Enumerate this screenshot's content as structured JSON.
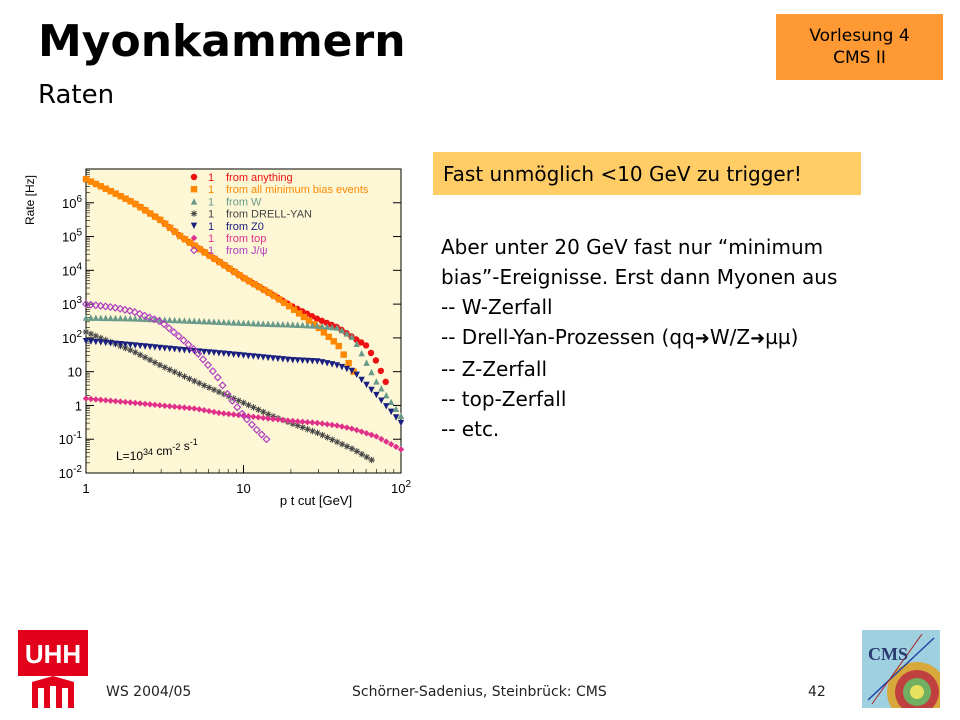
{
  "header": {
    "title": "Myonkammern",
    "subtitle": "Raten",
    "badge_line1": "Vorlesung 4",
    "badge_line2": "CMS II"
  },
  "highlight": "Fast unmöglich <10 GeV zu trigger!",
  "body": {
    "line1": "Aber unter 20 GeV fast nur “minimum",
    "line2": "bias”-Ereignisse. Erst dann Myonen aus",
    "line3": "-- W-Zerfall",
    "line4_a": "-- Drell-Yan-Prozessen (qq",
    "line4_b": "W/Z",
    "line4_c": "µµ)",
    "line5": "-- Z-Zerfall",
    "line6": "-- top-Zerfall",
    "line7": "-- etc."
  },
  "footer": {
    "left": "WS 2004/05",
    "center": "Schörner-Sadenius, Steinbrück: CMS",
    "page": "42"
  },
  "logos": {
    "uhh_text": "UHH",
    "cms_text": "CMS"
  },
  "chart_data": {
    "type": "scatter",
    "title": "",
    "xlabel": "p t cut [GeV]",
    "ylabel": "Rate [Hz]",
    "x_scale": "log",
    "y_scale": "log",
    "xlim": [
      1,
      100
    ],
    "ylim": [
      0.01,
      10000000
    ],
    "x_tick_labels": [
      "1",
      "10",
      "10^2"
    ],
    "y_tick_labels": [
      "10^6",
      "10^5",
      "10^4",
      "10^3",
      "10^2",
      "10",
      "1",
      "10^-1",
      "10^-2"
    ],
    "annotation": "L=10^34 cm^-2 s^-1",
    "legend_position": "top-right",
    "series": [
      {
        "name": "from anything",
        "legend_prefix": "1",
        "color": "#ee1111",
        "marker": "circle",
        "x": [
          1,
          1.5,
          2,
          3,
          4,
          5,
          7,
          10,
          15,
          20,
          30,
          40,
          50,
          60,
          70,
          80
        ],
        "y": [
          5000000,
          2000000,
          1000000,
          300000,
          100000,
          50000,
          18000,
          6000,
          2000,
          900,
          350,
          200,
          100,
          60,
          20,
          5
        ]
      },
      {
        "name": "from all minimum bias events",
        "legend_prefix": "1",
        "color": "#ff8800",
        "marker": "square",
        "x": [
          1,
          1.5,
          2,
          3,
          4,
          5,
          7,
          10,
          15,
          20,
          30,
          40,
          50
        ],
        "y": [
          5000000,
          2000000,
          1000000,
          300000,
          100000,
          50000,
          18000,
          6000,
          2000,
          800,
          200,
          60,
          10
        ]
      },
      {
        "name": "from W",
        "legend_prefix": "1",
        "color": "#6a9a8a",
        "marker": "triangle",
        "x": [
          1,
          2,
          3,
          5,
          7,
          10,
          15,
          20,
          30,
          40,
          50,
          70,
          100
        ],
        "y": [
          400,
          380,
          350,
          320,
          300,
          280,
          260,
          250,
          230,
          200,
          100,
          5,
          0.5
        ]
      },
      {
        "name": "from DRELL-YAN",
        "legend_prefix": "1",
        "color": "#444444",
        "marker": "star",
        "x": [
          1,
          2,
          3,
          5,
          7,
          10,
          15,
          20,
          30,
          40,
          50,
          70
        ],
        "y": [
          150,
          40,
          15,
          5,
          2.5,
          1.2,
          0.5,
          0.3,
          0.15,
          0.08,
          0.05,
          0.02
        ]
      },
      {
        "name": "from Z0",
        "legend_prefix": "1",
        "color": "#1a2080",
        "marker": "inverted-triangle",
        "x": [
          1,
          2,
          3,
          5,
          7,
          10,
          15,
          20,
          30,
          40,
          50,
          70,
          100
        ],
        "y": [
          80,
          60,
          50,
          40,
          35,
          30,
          25,
          22,
          20,
          15,
          10,
          2,
          0.3
        ]
      },
      {
        "name": "from top",
        "legend_prefix": "1",
        "color": "#e0308a",
        "marker": "diamond",
        "x": [
          1,
          2,
          3,
          5,
          7,
          10,
          15,
          20,
          30,
          40,
          50,
          70,
          100
        ],
        "y": [
          1.6,
          1.2,
          1,
          0.8,
          0.6,
          0.5,
          0.4,
          0.35,
          0.3,
          0.25,
          0.2,
          0.12,
          0.05
        ]
      },
      {
        "name": "from J/ψ",
        "legend_prefix": "1",
        "color": "#b040c0",
        "marker": "diamond-open",
        "x": [
          1,
          1.5,
          2,
          3,
          4,
          5,
          6,
          7,
          8,
          10,
          12,
          14
        ],
        "y": [
          1000,
          800,
          600,
          300,
          100,
          40,
          15,
          6,
          2,
          0.5,
          0.2,
          0.1
        ]
      }
    ]
  }
}
